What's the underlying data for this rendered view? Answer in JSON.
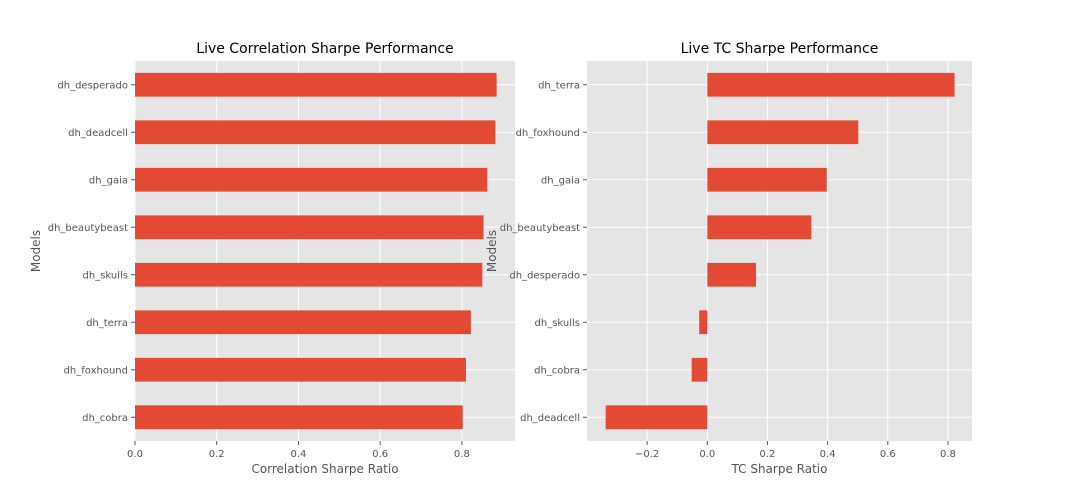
{
  "chart_data": [
    {
      "type": "bar",
      "orientation": "horizontal",
      "title": "Live Correlation Sharpe Performance",
      "xlabel": "Correlation Sharpe Ratio",
      "ylabel": "Models",
      "categories": [
        "dh_desperado",
        "dh_deadcell",
        "dh_gaia",
        "dh_beautybeast",
        "dh_skulls",
        "dh_terra",
        "dh_foxhound",
        "dh_cobra"
      ],
      "values": [
        0.885,
        0.882,
        0.862,
        0.853,
        0.85,
        0.822,
        0.81,
        0.802
      ],
      "xlim": [
        0,
        0.93
      ],
      "xticks": [
        0.0,
        0.2,
        0.4,
        0.6,
        0.8
      ],
      "xtick_labels": [
        "0.0",
        "0.2",
        "0.4",
        "0.6",
        "0.8"
      ],
      "grid": true,
      "bar_color": "#E24A33",
      "background": "#E5E5E5"
    },
    {
      "type": "bar",
      "orientation": "horizontal",
      "title": "Live TC Sharpe Performance",
      "xlabel": "TC Sharpe Ratio",
      "ylabel": "Models",
      "categories": [
        "dh_terra",
        "dh_foxhound",
        "dh_gaia",
        "dh_beautybeast",
        "dh_desperado",
        "dh_skulls",
        "dh_cobra",
        "dh_deadcell"
      ],
      "values": [
        0.822,
        0.502,
        0.397,
        0.346,
        0.162,
        -0.027,
        -0.052,
        -0.338
      ],
      "xlim": [
        -0.4,
        0.88
      ],
      "xticks": [
        -0.2,
        0.0,
        0.2,
        0.4,
        0.6,
        0.8
      ],
      "xtick_labels": [
        "−0.2",
        "0.0",
        "0.2",
        "0.4",
        "0.6",
        "0.8"
      ],
      "grid": true,
      "bar_color": "#E24A33",
      "background": "#E5E5E5"
    }
  ]
}
